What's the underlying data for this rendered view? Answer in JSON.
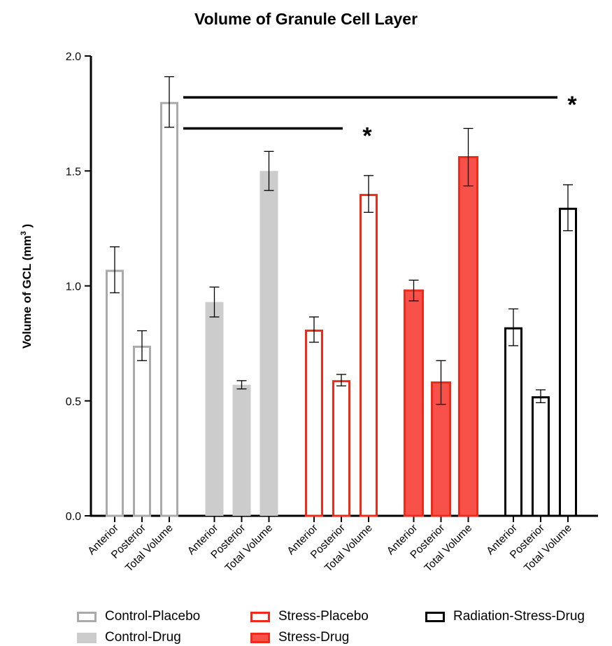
{
  "chart_data": {
    "type": "bar",
    "title": "Volume of Granule Cell Layer",
    "ylabel": "Volume of GCL (mm",
    "ylabel_sup": "3",
    "ylabel_suffix": " )",
    "ylim": [
      0,
      2.0
    ],
    "yticks": [
      "0.0",
      "0.5",
      "1.0",
      "1.5",
      "2.0"
    ],
    "categories": [
      "Anterior",
      "Posterior",
      "Total Volume"
    ],
    "series": [
      {
        "name": "Control-Placebo",
        "style": "outline",
        "color": "#aaaaaa",
        "fill": "#ffffff",
        "values": [
          1.07,
          0.74,
          1.8
        ],
        "errors": [
          0.1,
          0.065,
          0.11
        ]
      },
      {
        "name": "Control-Drug",
        "style": "filled",
        "color": "#cccccc",
        "fill": "#cccccc",
        "values": [
          0.93,
          0.57,
          1.5
        ],
        "errors": [
          0.065,
          0.018,
          0.085
        ]
      },
      {
        "name": "Stress-Placebo",
        "style": "outline",
        "color": "#ee2a1b",
        "fill": "#ffffff",
        "values": [
          0.81,
          0.59,
          1.4
        ],
        "errors": [
          0.055,
          0.025,
          0.08
        ]
      },
      {
        "name": "Stress-Drug",
        "style": "filled",
        "color": "#ee2a1b",
        "fill": "#f85149",
        "values": [
          0.98,
          0.58,
          1.56
        ],
        "errors": [
          0.045,
          0.095,
          0.125
        ]
      },
      {
        "name": "Radiation-Stress-Drug",
        "style": "outline",
        "color": "#000000",
        "fill": "#ffffff",
        "values": [
          0.82,
          0.52,
          1.34
        ],
        "errors": [
          0.08,
          0.028,
          0.1
        ]
      }
    ],
    "significance": [
      {
        "label": "*",
        "from": "Control-Placebo Total Volume",
        "to": "Stress-Placebo Posterior",
        "y": 1.685
      },
      {
        "label": "*",
        "from": "Control-Placebo Total Volume",
        "to": "Radiation-Stress-Drug Total Volume",
        "y": 1.82
      }
    ],
    "legend_position": "bottom",
    "grid": false
  }
}
